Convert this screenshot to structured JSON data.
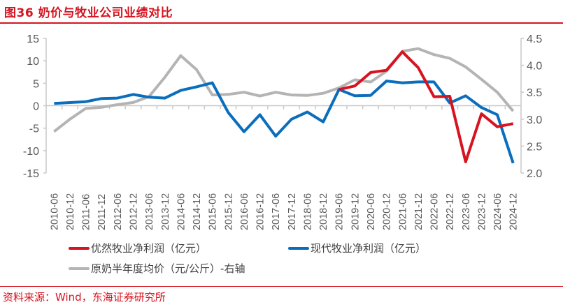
{
  "header": {
    "title": "图36  奶价与牧业公司业绩对比"
  },
  "footer": {
    "source": "资料来源：Wind，东海证券研究所"
  },
  "colors": {
    "accent": "#d7131f",
    "youran": "#d7131f",
    "xiandai": "#0a6ebd",
    "milk": "#b4b4b4",
    "axis": "#c8c8c8",
    "text": "#595959"
  },
  "legend": [
    {
      "label": "优然牧业净利润（亿元）",
      "color": "#d7131f"
    },
    {
      "label": "现代牧业净利润（亿元）",
      "color": "#0a6ebd"
    },
    {
      "label": "原奶半年度均价（元/公斤）-右轴",
      "color": "#b4b4b4"
    }
  ],
  "chart_data": {
    "type": "line",
    "title": "奶价与牧业公司业绩对比",
    "xlabel": "",
    "ylabel": "",
    "y2label": "",
    "ylim": [
      -15,
      15
    ],
    "y2lim": [
      2.0,
      4.5
    ],
    "yticks": [
      "15",
      "10",
      "5",
      "0",
      "-5",
      "-10",
      "-15"
    ],
    "y2ticks": [
      "4.5",
      "4.0",
      "3.5",
      "3.0",
      "2.5",
      "2.0"
    ],
    "grid": false,
    "legend_position": "bottom",
    "categories": [
      "2010-06",
      "2010-12",
      "2011-06",
      "2011-12",
      "2012-06",
      "2012-12",
      "2013-06",
      "2013-12",
      "2014-06",
      "2014-12",
      "2015-06",
      "2015-12",
      "2016-06",
      "2016-12",
      "2017-06",
      "2017-12",
      "2018-06",
      "2018-12",
      "2019-06",
      "2019-12",
      "2020-06",
      "2020-12",
      "2021-06",
      "2021-12",
      "2022-06",
      "2022-12",
      "2023-06",
      "2023-12",
      "2024-06",
      "2024-12"
    ],
    "series": [
      {
        "name": "优然牧业净利润（亿元）",
        "axis": "left",
        "color": "#d7131f",
        "values": [
          null,
          null,
          null,
          null,
          null,
          null,
          null,
          null,
          null,
          null,
          null,
          null,
          null,
          null,
          null,
          null,
          null,
          null,
          3.6,
          4.4,
          7.4,
          7.9,
          12.0,
          8.5,
          2.0,
          2.1,
          -12.5,
          -1.8,
          -4.7,
          -4.0
        ]
      },
      {
        "name": "现代牧业净利润（亿元）",
        "axis": "left",
        "color": "#0a6ebd",
        "values": [
          0.5,
          0.7,
          0.9,
          1.6,
          1.7,
          2.5,
          1.9,
          1.7,
          3.4,
          4.2,
          5.1,
          -1.5,
          -5.8,
          -2.0,
          -6.8,
          -3.0,
          -1.4,
          -3.6,
          3.6,
          2.2,
          2.3,
          5.5,
          5.1,
          5.3,
          5.3,
          0.6,
          2.2,
          -0.4,
          -2.0,
          -12.8
        ]
      },
      {
        "name": "原奶半年度均价（元/公斤）-右轴",
        "axis": "right",
        "color": "#b4b4b4",
        "values": [
          2.77,
          3.0,
          3.2,
          3.22,
          3.27,
          3.31,
          3.42,
          3.78,
          4.18,
          3.92,
          3.45,
          3.46,
          3.5,
          3.43,
          3.5,
          3.45,
          3.44,
          3.48,
          3.58,
          3.73,
          3.69,
          3.89,
          4.26,
          4.31,
          4.2,
          4.13,
          3.97,
          3.74,
          3.5,
          3.15
        ]
      }
    ]
  }
}
